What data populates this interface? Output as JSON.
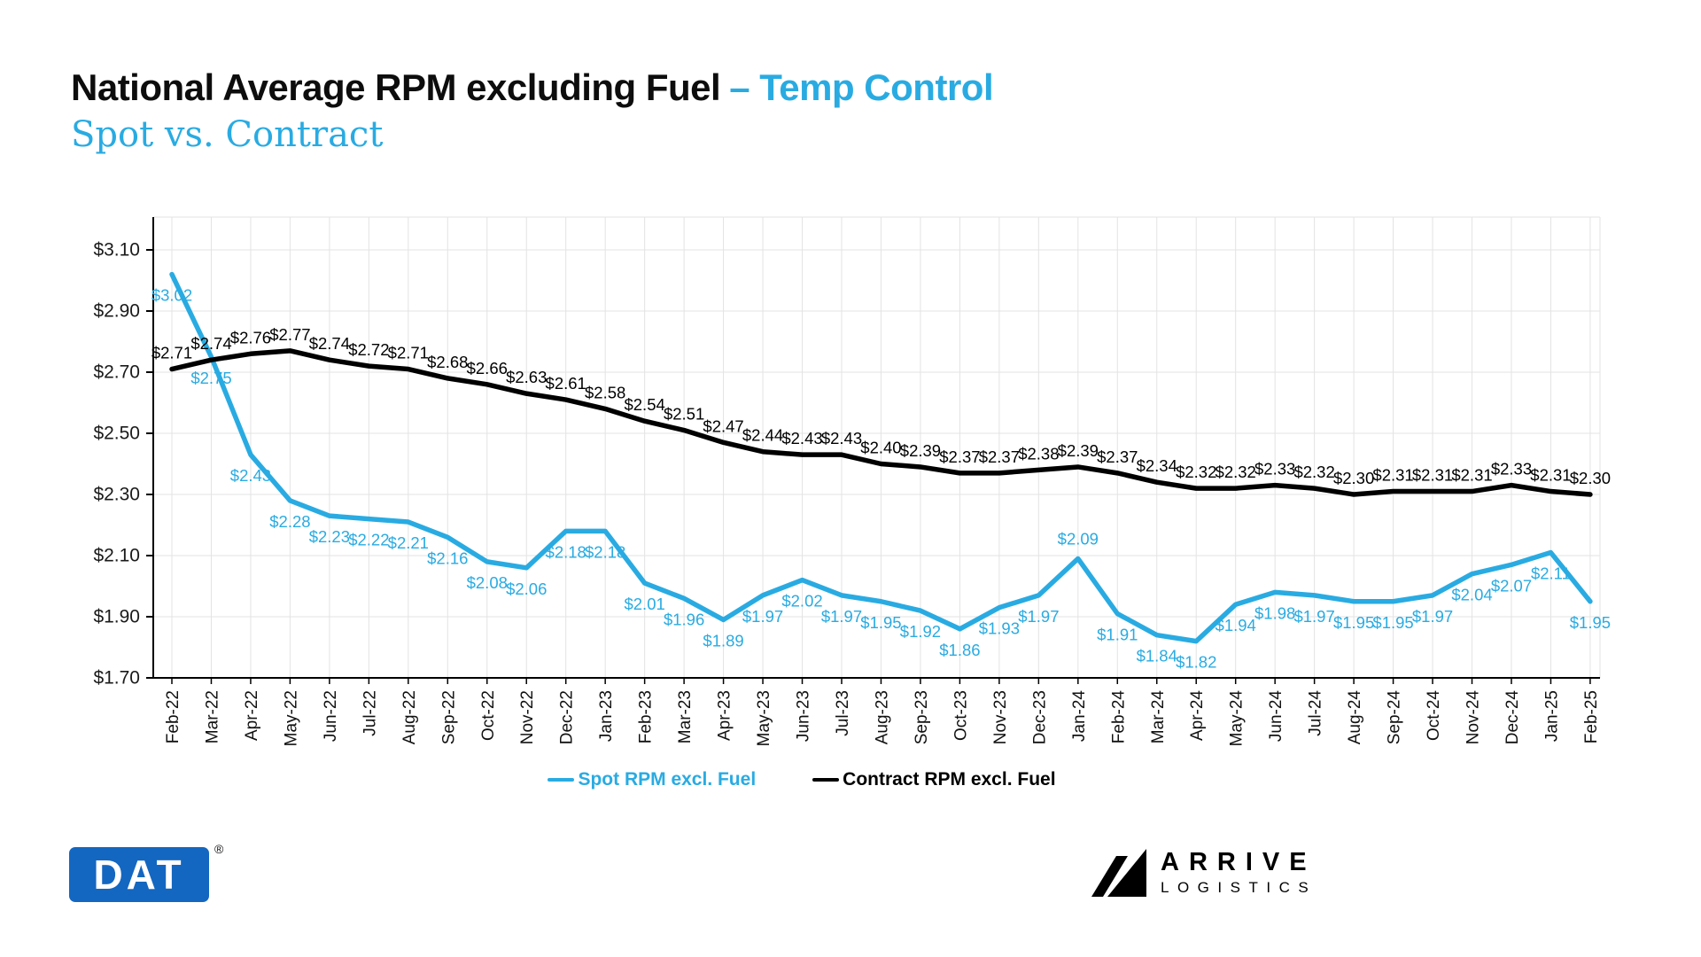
{
  "header": {
    "title_main": "National Average RPM excluding Fuel",
    "title_accent": "– Temp Control",
    "subtitle": "Spot vs. Contract"
  },
  "chart_data": {
    "type": "line",
    "title": "National Average RPM excluding Fuel – Temp Control",
    "subtitle": "Spot vs. Contract",
    "categories": [
      "Feb-22",
      "Mar-22",
      "Apr-22",
      "May-22",
      "Jun-22",
      "Jul-22",
      "Aug-22",
      "Sep-22",
      "Oct-22",
      "Nov-22",
      "Dec-22",
      "Jan-23",
      "Feb-23",
      "Mar-23",
      "Apr-23",
      "May-23",
      "Jun-23",
      "Jul-23",
      "Aug-23",
      "Sep-23",
      "Oct-23",
      "Nov-23",
      "Dec-23",
      "Jan-24",
      "Feb-24",
      "Mar-24",
      "Apr-24",
      "May-24",
      "Jun-24",
      "Jul-24",
      "Aug-24",
      "Sep-24",
      "Oct-24",
      "Nov-24",
      "Dec-24",
      "Jan-25",
      "Feb-25"
    ],
    "series": [
      {
        "name": "Spot RPM excl. Fuel",
        "color": "#29ABE2",
        "values": [
          3.02,
          2.75,
          2.43,
          2.28,
          2.23,
          2.22,
          2.21,
          2.16,
          2.08,
          2.06,
          2.18,
          2.18,
          2.01,
          1.96,
          1.89,
          1.97,
          2.02,
          1.97,
          1.95,
          1.92,
          1.86,
          1.93,
          1.97,
          2.09,
          1.91,
          1.84,
          1.82,
          1.94,
          1.98,
          1.97,
          1.95,
          1.95,
          1.97,
          2.04,
          2.07,
          2.11,
          1.95
        ]
      },
      {
        "name": "Contract RPM excl. Fuel",
        "color": "#000000",
        "values": [
          2.71,
          2.74,
          2.76,
          2.77,
          2.74,
          2.72,
          2.71,
          2.68,
          2.66,
          2.63,
          2.61,
          2.58,
          2.54,
          2.51,
          2.47,
          2.44,
          2.43,
          2.43,
          2.4,
          2.39,
          2.37,
          2.37,
          2.38,
          2.39,
          2.37,
          2.34,
          2.32,
          2.32,
          2.33,
          2.32,
          2.3,
          2.31,
          2.31,
          2.31,
          2.33,
          2.31,
          2.3
        ]
      }
    ],
    "y_ticks": [
      "$3.10",
      "$2.90",
      "$2.70",
      "$2.50",
      "$2.30",
      "$2.10",
      "$1.90",
      "$1.70"
    ],
    "ylim": [
      1.7,
      3.1
    ],
    "xlabel": "",
    "ylabel": "",
    "grid": true,
    "legend_position": "bottom",
    "data_label_format": "$0.00",
    "colors": {
      "accent_blue": "#29ABE2",
      "contract_black": "#000000",
      "grid_gray": "#E3E3E3"
    }
  },
  "footer": {
    "dat_logo_text": "DAT",
    "dat_registered_mark": "®",
    "arrive_line1": "ARRIVE",
    "arrive_line2": "LOGISTICS"
  }
}
